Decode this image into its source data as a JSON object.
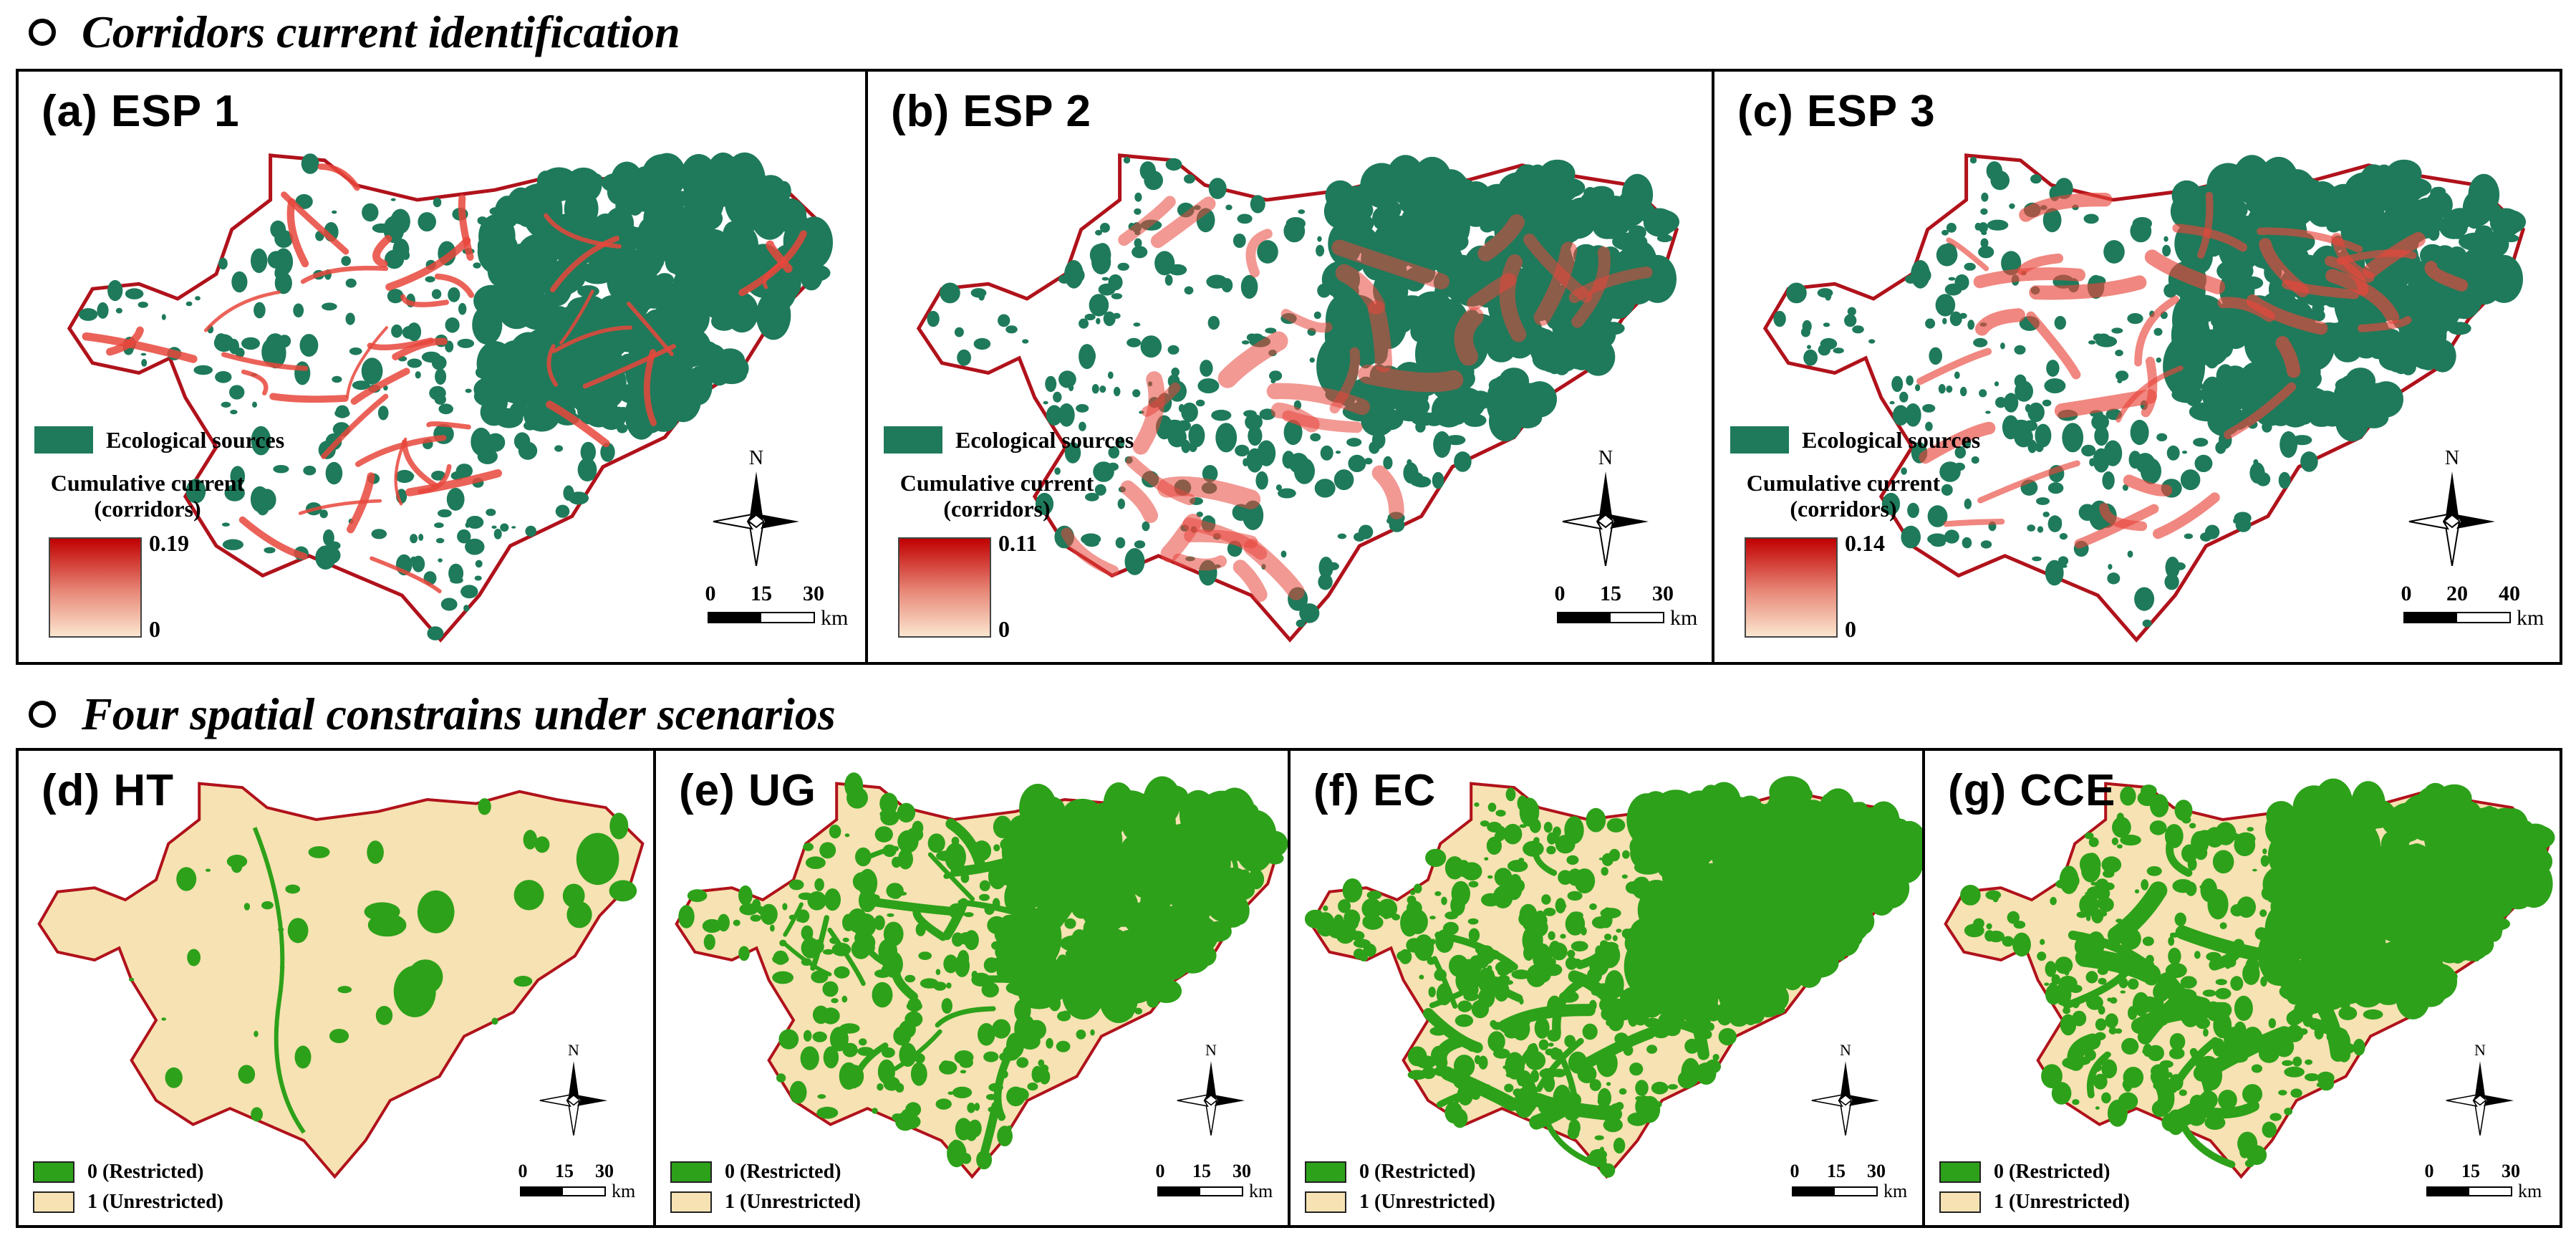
{
  "sections": {
    "top": "Corridors current identification",
    "bottom": "Four spatial constrains under scenarios"
  },
  "legend": {
    "ecological_sources": "Ecological sources",
    "cumulative_current": "Cumulative current",
    "corridors": "(corridors)",
    "restricted": "0 (Restricted)",
    "unrestricted": "1 (Unrestricted)",
    "north": "N",
    "unit": "km"
  },
  "colors": {
    "ecological_source": "#1e7a5a",
    "corridor": "#e8463c",
    "restricted": "#2da11a",
    "unrestricted": "#f7e2b3",
    "boundary": "#b0121b"
  },
  "top_panels": [
    {
      "label": "(a) ESP 1",
      "max": "0.19",
      "min": "0",
      "scale": [
        "0",
        "15",
        "30"
      ]
    },
    {
      "label": "(b) ESP 2",
      "max": "0.11",
      "min": "0",
      "scale": [
        "0",
        "15",
        "30"
      ]
    },
    {
      "label": "(c) ESP 3",
      "max": "0.14",
      "min": "0",
      "scale": [
        "0",
        "20",
        "40"
      ]
    }
  ],
  "bottom_panels": [
    {
      "label": "(d) HT",
      "scale": [
        "0",
        "15",
        "30"
      ]
    },
    {
      "label": "(e) UG",
      "scale": [
        "0",
        "15",
        "30"
      ]
    },
    {
      "label": "(f) EC",
      "scale": [
        "0",
        "15",
        "30"
      ]
    },
    {
      "label": "(g) CCE",
      "scale": [
        "0",
        "15",
        "30"
      ]
    }
  ]
}
